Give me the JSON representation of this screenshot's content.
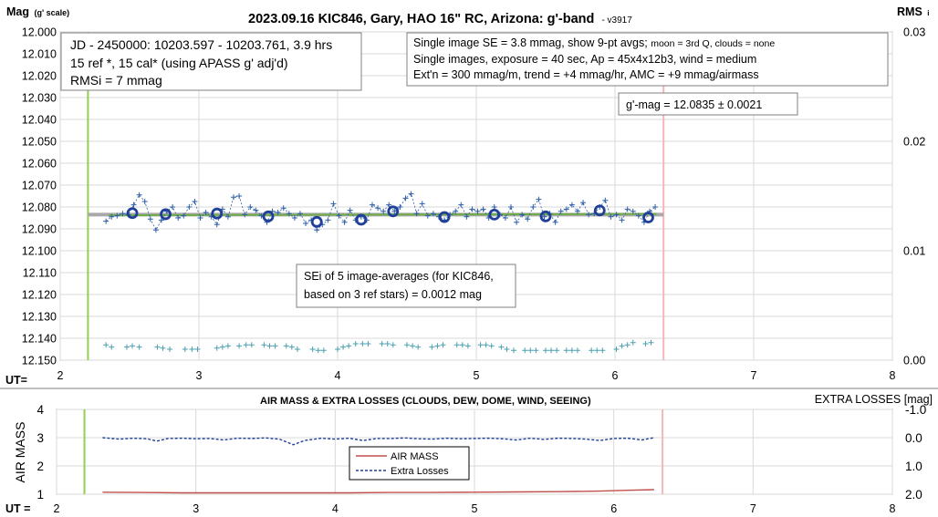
{
  "chart_data": [
    {
      "type": "scatter",
      "title": "2023.09.16 KIC846, Gary, HAO 16\" RC, Arizona: g'-band",
      "version": "- v3917",
      "ylabel_main": "Mag",
      "ylabel_sub": "(g' scale)",
      "y2label_main": "RMS",
      "y2label_sub": "i",
      "xlabel": "UT=",
      "xlim": [
        2,
        8
      ],
      "xticks": [
        "2",
        "3",
        "4",
        "5",
        "6",
        "7",
        "8"
      ],
      "ylim": [
        12.0,
        12.15
      ],
      "y_reversed": true,
      "yticks": [
        "12.000",
        "12.010",
        "12.020",
        "12.030",
        "12.040",
        "12.050",
        "12.060",
        "12.070",
        "12.080",
        "12.090",
        "12.100",
        "12.110",
        "12.120",
        "12.130",
        "12.140",
        "12.150"
      ],
      "y2lim": [
        0.0,
        0.03
      ],
      "y2ticks": [
        "0.03",
        "0.02",
        "0.01",
        "0.00"
      ],
      "annotations": {
        "info_left": [
          "JD - 2450000: 10203.597 - 10203.761, 3.9 hrs",
          "15 ref *, 15 cal* (using APASS g' adj'd)",
          "RMSi = 7 mmag"
        ],
        "info_right_1a": "Single image SE = 3.8 mmag, show  9-pt avgs; ",
        "info_right_1b": "moon = 3rd Q, clouds = none",
        "info_right_2": "Single images, exposure = 40 sec, Ap = 45x4x12b3, wind = medium",
        "info_right_3": "Ext'n = 300 mmag/m, trend = +4 mmag/hr, AMC = +9 mmag/airmass",
        "mag_result": "g'-mag = 12.0835 ± 0.0021",
        "sei_1": "SEi of 5 image-averages (for KIC846,",
        "sei_2": "based on 3 ref stars) = 0.0012 mag"
      },
      "vlines": [
        {
          "x": 2.2,
          "color": "#92d050"
        },
        {
          "x": 6.35,
          "color": "#f4b6b6"
        }
      ],
      "mean_mag": 12.0835,
      "trend_line": {
        "x": [
          2.2,
          6.35
        ],
        "y": [
          12.0835,
          12.0835
        ],
        "color": "#a9a9a9"
      },
      "fit_line": {
        "x": [
          2.35,
          6.3
        ],
        "y": [
          12.0838,
          12.0832
        ],
        "color": "#70ad47"
      },
      "avg_points": {
        "color": "#1f3f99",
        "x": [
          2.52,
          2.76,
          3.13,
          3.5,
          3.85,
          4.17,
          4.4,
          4.77,
          5.13,
          5.5,
          5.89,
          6.24
        ],
        "y": [
          12.0828,
          12.0833,
          12.083,
          12.0843,
          12.0868,
          12.0858,
          12.082,
          12.0846,
          12.0835,
          12.0843,
          12.0816,
          12.0848
        ]
      },
      "single_points": {
        "color": "#2e5fa8",
        "x": [
          2.33,
          2.37,
          2.41,
          2.45,
          2.49,
          2.53,
          2.57,
          2.61,
          2.65,
          2.69,
          2.73,
          2.77,
          2.81,
          2.85,
          2.89,
          2.93,
          2.97,
          3.01,
          3.05,
          3.09,
          3.13,
          3.17,
          3.21,
          3.25,
          3.29,
          3.33,
          3.37,
          3.41,
          3.45,
          3.49,
          3.53,
          3.57,
          3.61,
          3.65,
          3.69,
          3.73,
          3.77,
          3.81,
          3.85,
          3.89,
          3.93,
          3.97,
          4.01,
          4.05,
          4.09,
          4.13,
          4.17,
          4.21,
          4.25,
          4.29,
          4.33,
          4.37,
          4.41,
          4.45,
          4.49,
          4.53,
          4.57,
          4.61,
          4.65,
          4.69,
          4.73,
          4.77,
          4.81,
          4.85,
          4.89,
          4.93,
          4.97,
          5.01,
          5.05,
          5.09,
          5.13,
          5.17,
          5.21,
          5.25,
          5.29,
          5.33,
          5.37,
          5.41,
          5.45,
          5.49,
          5.53,
          5.57,
          5.61,
          5.65,
          5.69,
          5.73,
          5.77,
          5.81,
          5.85,
          5.89,
          5.93,
          5.97,
          6.01,
          6.05,
          6.09,
          6.13,
          6.17,
          6.21,
          6.25,
          6.29
        ],
        "y": [
          12.0865,
          12.0845,
          12.084,
          12.083,
          12.0835,
          12.079,
          12.0745,
          12.0775,
          12.0855,
          12.0905,
          12.086,
          12.082,
          12.08,
          12.085,
          12.084,
          12.08,
          12.0775,
          12.085,
          12.0825,
          12.0845,
          12.088,
          12.081,
          12.0845,
          12.0755,
          12.075,
          12.0835,
          12.08,
          12.0815,
          12.084,
          12.087,
          12.082,
          12.0825,
          12.0805,
          12.083,
          12.085,
          12.083,
          12.0875,
          12.086,
          12.0905,
          12.088,
          12.086,
          12.0785,
          12.084,
          12.087,
          12.0815,
          12.086,
          12.0845,
          12.086,
          12.079,
          12.0805,
          12.082,
          12.079,
          12.082,
          12.08,
          12.076,
          12.074,
          12.083,
          12.0785,
          12.084,
          12.083,
          12.0845,
          12.086,
          12.0835,
          12.082,
          12.079,
          12.0845,
          12.081,
          12.082,
          12.081,
          12.085,
          12.08,
          12.0835,
          12.085,
          12.08,
          12.087,
          12.0835,
          12.0855,
          12.08,
          12.0765,
          12.0845,
          12.083,
          12.087,
          12.082,
          12.081,
          12.079,
          12.082,
          12.078,
          12.0835,
          12.083,
          12.08,
          12.077,
          12.0845,
          12.0835,
          12.086,
          12.081,
          12.082,
          12.084,
          12.087,
          12.082,
          12.08
        ]
      },
      "rms_points": {
        "color": "#4a9fb0",
        "x": [
          2.33,
          2.37,
          2.48,
          2.52,
          2.57,
          2.7,
          2.74,
          2.79,
          2.9,
          2.95,
          2.99,
          3.13,
          3.17,
          3.21,
          3.29,
          3.34,
          3.38,
          3.47,
          3.51,
          3.55,
          3.63,
          3.67,
          3.71,
          3.82,
          3.86,
          3.9,
          4.0,
          4.04,
          4.08,
          4.13,
          4.18,
          4.22,
          4.32,
          4.36,
          4.4,
          4.5,
          4.54,
          4.58,
          4.68,
          4.72,
          4.76,
          4.86,
          4.9,
          4.94,
          5.03,
          5.07,
          5.11,
          5.18,
          5.22,
          5.27,
          5.35,
          5.39,
          5.43,
          5.5,
          5.54,
          5.58,
          5.65,
          5.69,
          5.73,
          5.83,
          5.87,
          5.91,
          6.01,
          6.05,
          6.09,
          6.13,
          6.22,
          6.26
        ],
        "y": [
          0.0014,
          0.0012,
          0.0012,
          0.0013,
          0.0012,
          0.0012,
          0.0011,
          0.001,
          0.001,
          0.001,
          0.001,
          0.0011,
          0.0012,
          0.0013,
          0.0013,
          0.0014,
          0.0014,
          0.0014,
          0.0013,
          0.0013,
          0.0013,
          0.0012,
          0.001,
          0.001,
          0.0009,
          0.0009,
          0.001,
          0.0012,
          0.0013,
          0.0015,
          0.0015,
          0.0015,
          0.0015,
          0.0015,
          0.0014,
          0.0014,
          0.0013,
          0.0012,
          0.0012,
          0.0013,
          0.0014,
          0.0014,
          0.0014,
          0.0013,
          0.0014,
          0.0014,
          0.0013,
          0.0012,
          0.001,
          0.0009,
          0.0009,
          0.0009,
          0.0009,
          0.0009,
          0.0009,
          0.0009,
          0.0009,
          0.0009,
          0.0009,
          0.0009,
          0.0009,
          0.0009,
          0.001,
          0.0013,
          0.0014,
          0.0016,
          0.0015,
          0.0016
        ]
      }
    },
    {
      "type": "line",
      "title": "AIR MASS & EXTRA LOSSES (CLOUDS, DEW, DOME, WIND, SEEING)",
      "ylabel": "AIR MASS",
      "y2label": "EXTRA LOSSES [mag]",
      "xlabel": "UT =",
      "xlim": [
        2,
        8
      ],
      "xticks": [
        "2",
        "3",
        "4",
        "5",
        "6",
        "7",
        "8"
      ],
      "ylim": [
        1,
        4
      ],
      "yticks": [
        "4",
        "3",
        "2",
        "1"
      ],
      "y2lim": [
        -1.0,
        2.0
      ],
      "y2_reversed": true,
      "y2ticks": [
        "-1.0",
        "0.0",
        "1.0",
        "2.0"
      ],
      "legend": [
        "AIR MASS",
        "Extra Losses"
      ],
      "legend_position": "center",
      "vlines": [
        {
          "x": 2.2,
          "color": "#92d050"
        },
        {
          "x": 6.35,
          "color": "#f4b6b6"
        }
      ],
      "series": [
        {
          "name": "AIR MASS",
          "color": "#c0504d",
          "x": [
            2.33,
            2.6,
            2.9,
            3.2,
            3.5,
            3.8,
            4.1,
            4.4,
            4.7,
            5.0,
            5.3,
            5.6,
            5.9,
            6.1,
            6.29
          ],
          "y": [
            1.07,
            1.06,
            1.05,
            1.05,
            1.05,
            1.05,
            1.05,
            1.06,
            1.06,
            1.07,
            1.08,
            1.09,
            1.11,
            1.14,
            1.16
          ]
        },
        {
          "name": "Extra Losses",
          "axis": "y2",
          "color": "#1f3f99",
          "x": [
            2.33,
            2.45,
            2.55,
            2.65,
            2.72,
            2.8,
            2.9,
            3.0,
            3.1,
            3.2,
            3.3,
            3.4,
            3.5,
            3.6,
            3.7,
            3.78,
            3.9,
            4.0,
            4.1,
            4.2,
            4.3,
            4.4,
            4.5,
            4.6,
            4.7,
            4.8,
            4.9,
            5.0,
            5.1,
            5.2,
            5.3,
            5.4,
            5.5,
            5.6,
            5.7,
            5.8,
            5.9,
            6.0,
            6.1,
            6.2,
            6.29
          ],
          "y": [
            0.0,
            0.05,
            0.02,
            0.04,
            0.12,
            0.03,
            0.02,
            0.04,
            0.03,
            0.08,
            0.02,
            0.03,
            0.01,
            0.05,
            0.25,
            0.1,
            0.02,
            0.05,
            0.02,
            0.1,
            0.03,
            0.03,
            0.01,
            0.04,
            0.05,
            0.02,
            0.04,
            0.03,
            0.02,
            0.04,
            0.08,
            0.02,
            0.06,
            0.02,
            0.03,
            0.05,
            0.1,
            0.03,
            0.02,
            0.08,
            0.0
          ]
        }
      ]
    }
  ]
}
